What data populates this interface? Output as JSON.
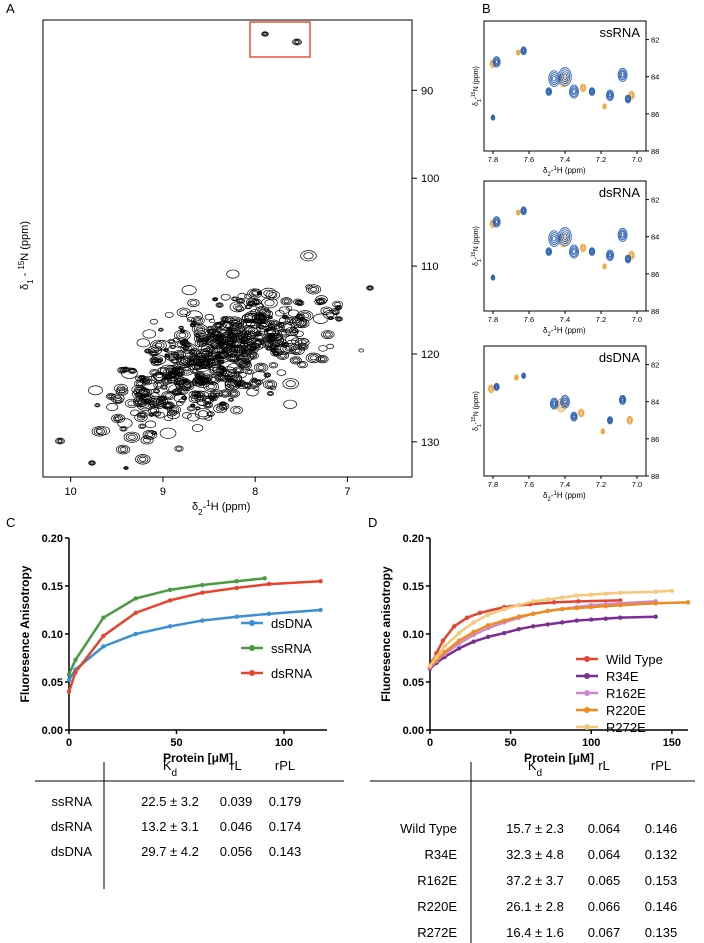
{
  "panel_labels": {
    "a": "A",
    "b": "B",
    "c": "C",
    "d": "D"
  },
  "colors": {
    "blue": "#2b63b3",
    "orange": "#f2a33a",
    "red_box": "#e8503a",
    "c_dsDNA": "#3b8fd4",
    "c_ssRNA": "#4a9b3f",
    "c_dsRNA": "#e5452f",
    "d_wt": "#e5452f",
    "d_r34e": "#7b2f94",
    "d_r162e": "#c98ad0",
    "d_r220e": "#f08a1d",
    "d_r272e": "#f7c77a"
  },
  "panel_a": {
    "xlabel_main": "δ",
    "xlabel_sub": "2",
    "xlabel_rest": "-",
    "xlabel_sup": "1",
    "xlabel_tail": "H  (ppm)",
    "ylabel_main": "δ",
    "ylabel_sub": "1",
    "ylabel_rest": " - ",
    "ylabel_sup": "15",
    "ylabel_tail": "N  (ppm)",
    "x_ticks": [
      "10",
      "9",
      "8",
      "7"
    ],
    "y_ticks": [
      "90",
      "100",
      "110",
      "120",
      "130"
    ],
    "xlim": [
      10.3,
      6.3
    ],
    "ylim": [
      82,
      134
    ]
  },
  "panel_b": {
    "spectra": [
      {
        "label": "ssRNA"
      },
      {
        "label": "dsRNA"
      },
      {
        "label": "dsDNA"
      }
    ],
    "x_ticks": [
      "7.8",
      "7.6",
      "7.4",
      "7.2",
      "7.0"
    ],
    "y_ticks": [
      "82",
      "84",
      "86",
      "88"
    ],
    "xlabel_main": "δ",
    "xlabel_sub": "2",
    "xlabel_rest": "-",
    "xlabel_sup": "1",
    "xlabel_tail": "H  (ppm)",
    "ylabel_main": "δ",
    "ylabel_sub": "1",
    "ylabel_rest": "-",
    "ylabel_sup": "15",
    "ylabel_tail": "N (ppm)"
  },
  "chart_data": [
    {
      "type": "line",
      "panel": "C",
      "ylabel": "Fluoresence Anisotropy",
      "xlabel": "Protein [μM]",
      "xlim": [
        0,
        120
      ],
      "ylim": [
        0,
        0.2
      ],
      "x_ticks": [
        "0",
        "50",
        "100"
      ],
      "y_ticks": [
        "0.00",
        "0.05",
        "0.10",
        "0.15",
        "0.20"
      ],
      "legend_position": "right",
      "series": [
        {
          "name": "dsDNA",
          "x": [
            0,
            3,
            16,
            31,
            47,
            62,
            78,
            93,
            117
          ],
          "y": [
            0.052,
            0.063,
            0.087,
            0.1,
            0.108,
            0.114,
            0.118,
            0.121,
            0.125
          ]
        },
        {
          "name": "ssRNA",
          "x": [
            0,
            3,
            16,
            31,
            47,
            62,
            78,
            91
          ],
          "y": [
            0.058,
            0.073,
            0.117,
            0.137,
            0.146,
            0.151,
            0.155,
            0.158
          ]
        },
        {
          "name": "dsRNA",
          "x": [
            0,
            3,
            16,
            31,
            47,
            62,
            78,
            93,
            117
          ],
          "y": [
            0.04,
            0.06,
            0.098,
            0.122,
            0.135,
            0.143,
            0.148,
            0.152,
            0.155
          ]
        }
      ]
    },
    {
      "type": "line",
      "panel": "D",
      "ylabel": "Fluoresence anisotropy",
      "xlabel": "Protein [μM]",
      "xlim": [
        0,
        160
      ],
      "ylim": [
        0,
        0.2
      ],
      "x_ticks": [
        "0",
        "50",
        "100",
        "150"
      ],
      "y_ticks": [
        "0.00",
        "0.05",
        "0.10",
        "0.15",
        "0.20"
      ],
      "legend_position": "right",
      "series": [
        {
          "name": "Wild Type",
          "x": [
            0,
            2,
            4,
            8,
            15,
            23,
            31,
            46,
            62,
            77,
            92,
            118
          ],
          "y": [
            0.064,
            0.072,
            0.08,
            0.093,
            0.108,
            0.117,
            0.122,
            0.128,
            0.131,
            0.133,
            0.134,
            0.135
          ]
        },
        {
          "name": "R34E",
          "x": [
            0,
            4,
            9,
            18,
            27,
            36,
            46,
            55,
            64,
            73,
            82,
            91,
            100,
            109,
            118,
            140
          ],
          "y": [
            0.064,
            0.07,
            0.076,
            0.085,
            0.092,
            0.097,
            0.101,
            0.105,
            0.108,
            0.11,
            0.112,
            0.114,
            0.115,
            0.116,
            0.117,
            0.118
          ]
        },
        {
          "name": "R162E",
          "x": [
            0,
            4,
            9,
            18,
            27,
            36,
            46,
            55,
            64,
            73,
            82,
            91,
            100,
            109,
            118,
            140
          ],
          "y": [
            0.065,
            0.072,
            0.079,
            0.09,
            0.099,
            0.106,
            0.112,
            0.117,
            0.121,
            0.124,
            0.126,
            0.128,
            0.13,
            0.131,
            0.132,
            0.134
          ]
        },
        {
          "name": "R220E",
          "x": [
            0,
            4,
            9,
            18,
            27,
            36,
            46,
            55,
            64,
            73,
            82,
            91,
            100,
            109,
            118,
            140,
            160
          ],
          "y": [
            0.066,
            0.073,
            0.081,
            0.093,
            0.102,
            0.109,
            0.114,
            0.118,
            0.121,
            0.124,
            0.126,
            0.127,
            0.128,
            0.129,
            0.13,
            0.132,
            0.133
          ]
        },
        {
          "name": "R272E",
          "x": [
            0,
            4,
            9,
            18,
            27,
            36,
            46,
            55,
            64,
            73,
            82,
            91,
            100,
            109,
            118,
            140,
            150
          ],
          "y": [
            0.067,
            0.076,
            0.087,
            0.101,
            0.112,
            0.12,
            0.126,
            0.13,
            0.134,
            0.136,
            0.138,
            0.14,
            0.141,
            0.142,
            0.143,
            0.144,
            0.145
          ]
        }
      ]
    }
  ],
  "table_c": {
    "headers": [
      "",
      "Kd",
      "rL",
      "rPL"
    ],
    "rows": [
      [
        "ssRNA",
        "22.5 ± 3.2",
        "0.039",
        "0.179"
      ],
      [
        "dsRNA",
        "13.2 ± 3.1",
        "0.046",
        "0.174"
      ],
      [
        "dsDNA",
        "29.7 ± 4.2",
        "0.056",
        "0.143"
      ]
    ]
  },
  "table_d": {
    "headers": [
      "",
      "Kd",
      "rL",
      "rPL"
    ],
    "rows": [
      [
        "Wild Type",
        "15.7 ± 2.3",
        "0.064",
        "0.146"
      ],
      [
        "R34E",
        "32.3 ± 4.8",
        "0.064",
        "0.132"
      ],
      [
        "R162E",
        "37.2 ± 3.7",
        "0.065",
        "0.153"
      ],
      [
        "R220E",
        "26.1 ± 2.8",
        "0.066",
        "0.146"
      ],
      [
        "R272E",
        "16.4 ± 1.6",
        "0.067",
        "0.135"
      ]
    ]
  }
}
